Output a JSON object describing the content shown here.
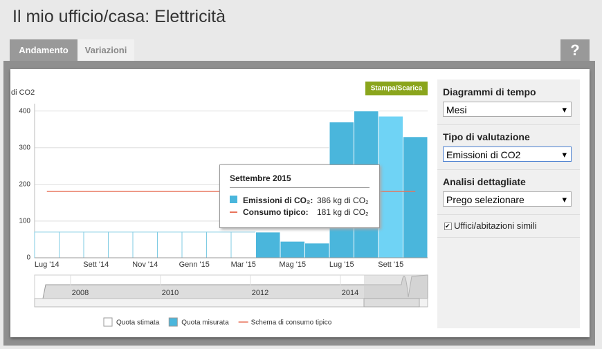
{
  "header": {
    "title": "Il mio ufficio/casa: Elettricità"
  },
  "tabs": [
    "Andamento",
    "Variazioni"
  ],
  "help": "?",
  "button": "Stampa/Scarica",
  "chart_data": {
    "type": "bar",
    "y_label": "di CO2",
    "categories": [
      "Lug '14",
      null,
      "Sett '14",
      null,
      "Nov '14",
      null,
      "Genn '15",
      null,
      "Mar '15",
      null,
      "Mag '15",
      null,
      "Lug '15",
      null,
      "Sett '15",
      null
    ],
    "series": [
      {
        "name": "Quota stimata",
        "color": "#ffffff",
        "values": [
          70,
          70,
          70,
          70,
          70,
          70,
          70,
          70,
          70,
          null,
          null,
          null,
          null,
          null,
          null,
          null
        ]
      },
      {
        "name": "Quota misurata",
        "color": "#4ab6dc",
        "values": [
          null,
          null,
          null,
          null,
          null,
          null,
          null,
          null,
          null,
          70,
          45,
          40,
          370,
          400,
          386,
          330
        ]
      },
      {
        "name": "Schema di consumo tipico",
        "type": "line",
        "color": "#e8735a",
        "values": [
          181,
          181,
          181,
          181,
          181,
          181,
          181,
          181,
          181,
          181,
          181,
          181,
          181,
          181,
          181,
          181
        ]
      }
    ],
    "ylim": [
      0,
      420
    ],
    "yticks": [
      0,
      100,
      200,
      300,
      400
    ],
    "grid": true,
    "highlight": 14
  },
  "navigator": {
    "labels": [
      "2008",
      "2010",
      "2012",
      "2014"
    ]
  },
  "tooltip": {
    "title": "Settembre 2015",
    "rows": [
      {
        "label": "Emissioni di CO₂:",
        "value": "386 kg di CO₂"
      },
      {
        "label": "Consumo tipico:",
        "value": "181 kg di CO₂"
      }
    ]
  },
  "sidebar": {
    "sections": [
      {
        "title": "Diagrammi di tempo",
        "select": "Mesi"
      },
      {
        "title": "Tipo di valutazione",
        "select": "Emissioni di CO2"
      },
      {
        "title": "Analisi dettagliate",
        "select": "Prego selezionare"
      }
    ],
    "checkbox": "Uffici/abitazioni simili"
  }
}
